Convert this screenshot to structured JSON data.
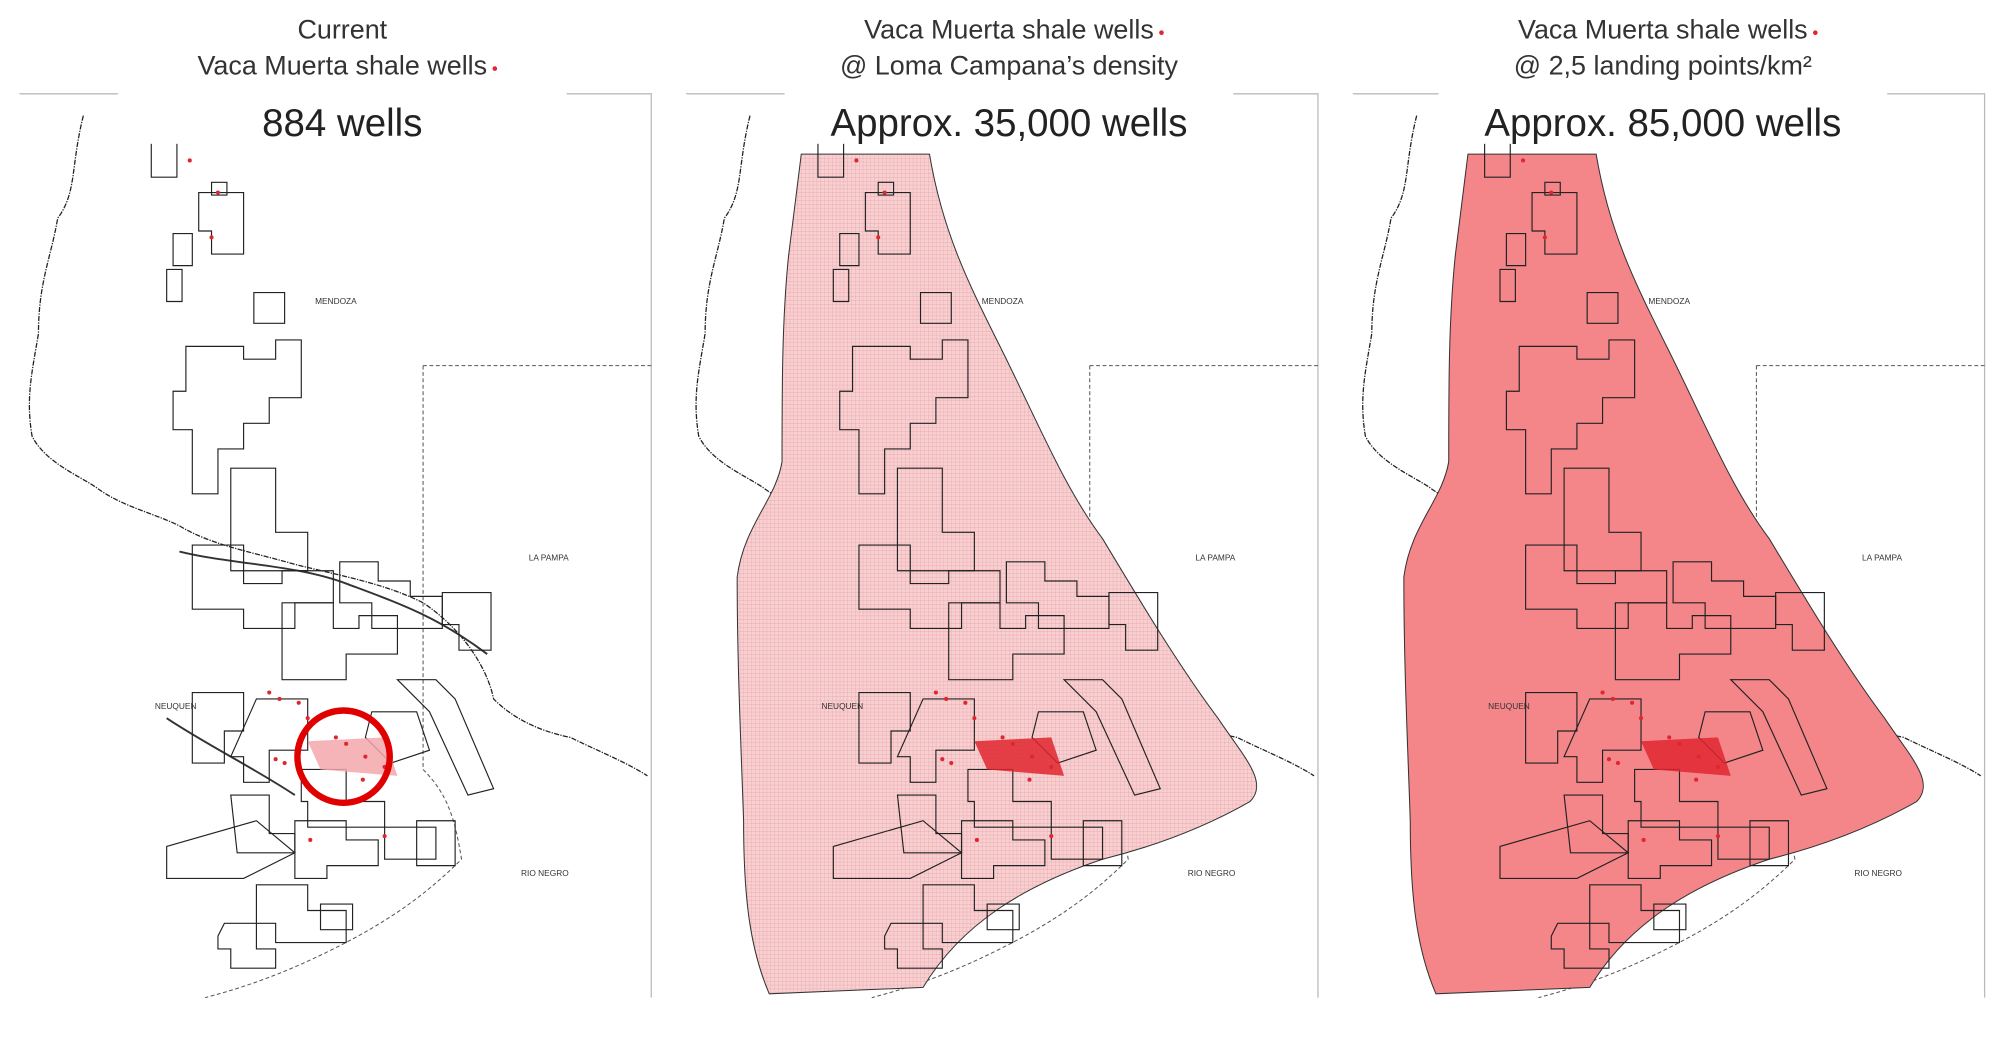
{
  "panels": [
    {
      "title_lines": [
        "Current",
        "Vaca Muerta shale wells"
      ],
      "count": "884 wells",
      "regions": {
        "mendoza": "MENDOZA",
        "la_pampa": "LA PAMPA",
        "neuquen": "NEUQUEN",
        "rio_negro": "RIO NEGRO"
      }
    },
    {
      "title_lines": [
        "Vaca Muerta shale wells",
        "@ Loma Campana’s density"
      ],
      "count": "Approx. 35,000 wells",
      "regions": {
        "mendoza": "MENDOZA",
        "la_pampa": "LA PAMPA",
        "neuquen": "NEUQUEN",
        "rio_negro": "RIO NEGRO"
      }
    },
    {
      "title_lines": [
        "Vaca Muerta shale wells",
        "@ 2,5 landing points/km²"
      ],
      "count": "Approx. 85,000 wells",
      "regions": {
        "mendoza": "MENDOZA",
        "la_pampa": "LA PAMPA",
        "neuquen": "NEUQUEN",
        "rio_negro": "RIO NEGRO"
      }
    }
  ]
}
